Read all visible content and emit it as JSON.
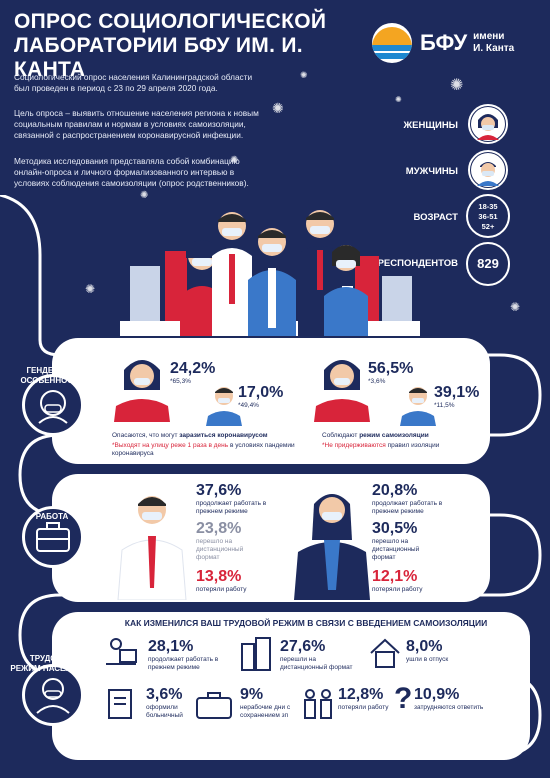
{
  "header": {
    "title": "ОПРОС СОЦИОЛОГИЧЕСКОЙ ЛАБОРАТОРИИ БФУ ИМ. И. КАНТА",
    "logo_name": "БФУ",
    "logo_sub_1": "имени",
    "logo_sub_2": "И. Канта"
  },
  "intro": {
    "p1": "Социологический опрос населения Калининградской области был проведен в период с 23 по 29 апреля 2020 года.",
    "p2": "Цель опроса – выявить отношение населения региона к новым социальным правилам и нормам в условиях самоизоляции, связанной с распространением коронавирусной инфекции.",
    "p3": "Методика исследования представляла собой комбинацию онлайн-опроса и личного формализованного интервью в условиях соблюдения самоизоляции (опрос родственников)."
  },
  "legend": {
    "women": "ЖЕНЩИНЫ",
    "men": "МУЖЧИНЫ",
    "age_label": "ВОЗРАСТ",
    "age_1": "18-35",
    "age_2": "36-51",
    "age_3": "52+",
    "respondents_label": "РЕСПОНДЕНТОВ",
    "respondents_value": "829"
  },
  "gender": {
    "label_1": "ГЕНДЕРНЫЕ",
    "label_2": "ОСОБЕННОСТИ",
    "women_fear": "24,2%",
    "women_fear_sub": "*65,3%",
    "men_fear": "17,0%",
    "men_fear_sub": "*49,4%",
    "women_keep": "56,5%",
    "women_keep_sub": "*3,6%",
    "men_keep": "39,1%",
    "men_keep_sub": "*11,5%",
    "caption_left_1": "Опасаются, что могут",
    "caption_left_bold": "заразиться коронавирусом",
    "caption_left_2_red": "*Выходят на улицу реже 1 раза в день",
    "caption_left_2": "в условиях пандемии коронавируса",
    "caption_right_1": "Соблюдают",
    "caption_right_bold": "режим самоизоляции",
    "caption_right_2_red": "*Не придерживаются",
    "caption_right_2": "правил изоляции"
  },
  "work": {
    "label": "РАБОТА",
    "m1_value": "37,6%",
    "m1_text": "продолжает работать в прежнем режиме",
    "m2_value": "23,8%",
    "m2_text": "перешло на дистанционный формат",
    "m3_value": "13,8%",
    "m3_text": "потеряли работу",
    "w1_value": "20,8%",
    "w1_text": "продолжает работать в прежнем режиме",
    "w2_value": "30,5%",
    "w2_text": "перешло на дистанционный формат",
    "w3_value": "12,1%",
    "w3_text": "потеряли работу"
  },
  "regime": {
    "label_1": "ТРУДОВОЙ",
    "label_2": "РЕЖИМ НАСЕЛЕНИЯ",
    "heading": "КАК ИЗМЕНИЛСЯ ВАШ ТРУДОВОЙ РЕЖИМ В СВЯЗИ С ВВЕДЕНИЕМ САМОИЗОЛЯЦИИ",
    "s1_value": "28,1%",
    "s1_text": "продолжает работать в прежнем режиме",
    "s2_value": "27,6%",
    "s2_text": "перешли на дистанционный формат",
    "s3_value": "8,0%",
    "s3_text": "ушли в отпуск",
    "s4_value": "3,6%",
    "s4_text": "оформили больничный",
    "s5_value": "9%",
    "s5_text": "нерабочие дни с сохранением зп",
    "s6_value": "12,8%",
    "s6_text": "потеряли работу",
    "s7_value": "10,9%",
    "s7_text": "затрудняются ответить"
  },
  "colors": {
    "navy": "#1d2a5c",
    "red": "#d8243a",
    "pill": "#ffffff",
    "accent_blue": "#3a78c9"
  }
}
